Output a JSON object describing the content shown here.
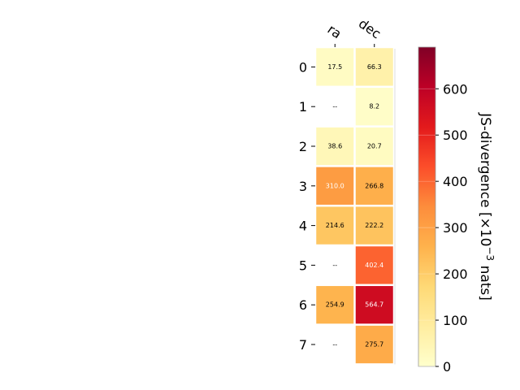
{
  "chart_data": {
    "type": "heatmap",
    "title": "",
    "columns": [
      "ra",
      "dec"
    ],
    "rows": [
      "0",
      "1",
      "2",
      "3",
      "4",
      "5",
      "6",
      "7"
    ],
    "values": [
      [
        17.5,
        66.3
      ],
      [
        null,
        8.2
      ],
      [
        38.6,
        20.7
      ],
      [
        310.0,
        266.8
      ],
      [
        214.6,
        222.2
      ],
      [
        null,
        402.4
      ],
      [
        254.9,
        564.7
      ],
      [
        null,
        275.7
      ]
    ],
    "cell_labels": [
      [
        "17.5",
        "66.3"
      ],
      [
        "--",
        "8.2"
      ],
      [
        "38.6",
        "20.7"
      ],
      [
        "310.0",
        "266.8"
      ],
      [
        "214.6",
        "222.2"
      ],
      [
        "--",
        "402.4"
      ],
      [
        "254.9",
        "564.7"
      ],
      [
        "--",
        "275.7"
      ]
    ],
    "missing_label": "--",
    "colorbar": {
      "label_main": "JS-divergence [×10",
      "label_exp": "−3",
      "label_unit": " nats]",
      "min": 0,
      "max": 690,
      "ticks": [
        "0",
        "100",
        "200",
        "300",
        "400",
        "500",
        "600"
      ],
      "tick_values": [
        0,
        100,
        200,
        300,
        400,
        500,
        600
      ],
      "colormap": "YlOrRd",
      "colormap_stops": [
        "#ffffcc",
        "#ffeda0",
        "#fed976",
        "#feb24c",
        "#fd8d3c",
        "#fc4e2a",
        "#e31a1c",
        "#bd0026",
        "#800026"
      ]
    },
    "grid": false,
    "legend": "none",
    "text_color_light": "#ffffff",
    "text_color_dark": "#000000"
  }
}
